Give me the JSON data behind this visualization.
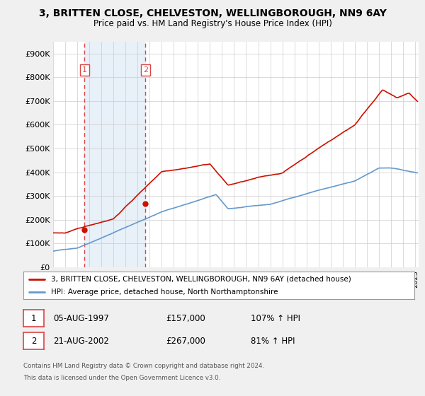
{
  "title": "3, BRITTEN CLOSE, CHELVESTON, WELLINGBOROUGH, NN9 6AY",
  "subtitle": "Price paid vs. HM Land Registry's House Price Index (HPI)",
  "legend_line1": "3, BRITTEN CLOSE, CHELVESTON, WELLINGBOROUGH, NN9 6AY (detached house)",
  "legend_line2": "HPI: Average price, detached house, North Northamptonshire",
  "sale1_label": "1",
  "sale1_date": "05-AUG-1997",
  "sale1_price": "£157,000",
  "sale1_hpi": "107% ↑ HPI",
  "sale2_label": "2",
  "sale2_date": "21-AUG-2002",
  "sale2_price": "£267,000",
  "sale2_hpi": "81% ↑ HPI",
  "footnote_line1": "Contains HM Land Registry data © Crown copyright and database right 2024.",
  "footnote_line2": "This data is licensed under the Open Government Licence v3.0.",
  "sale1_x": 1997.6,
  "sale1_y": 157000,
  "sale2_x": 2002.65,
  "sale2_y": 267000,
  "hpi_color": "#6699cc",
  "price_color": "#cc1100",
  "sale_dot_color": "#cc1100",
  "vline_color": "#dd4444",
  "highlight_color": "#e8f0f8",
  "background_color": "#f0f0f0",
  "plot_bg_color": "#ffffff",
  "ylim": [
    0,
    950000
  ],
  "xlim_start": 1995,
  "xlim_end": 2025.3,
  "yticks": [
    0,
    100000,
    200000,
    300000,
    400000,
    500000,
    600000,
    700000,
    800000,
    900000
  ],
  "ytick_labels": [
    "£0",
    "£100K",
    "£200K",
    "£300K",
    "£400K",
    "£500K",
    "£600K",
    "£700K",
    "£800K",
    "£900K"
  ]
}
